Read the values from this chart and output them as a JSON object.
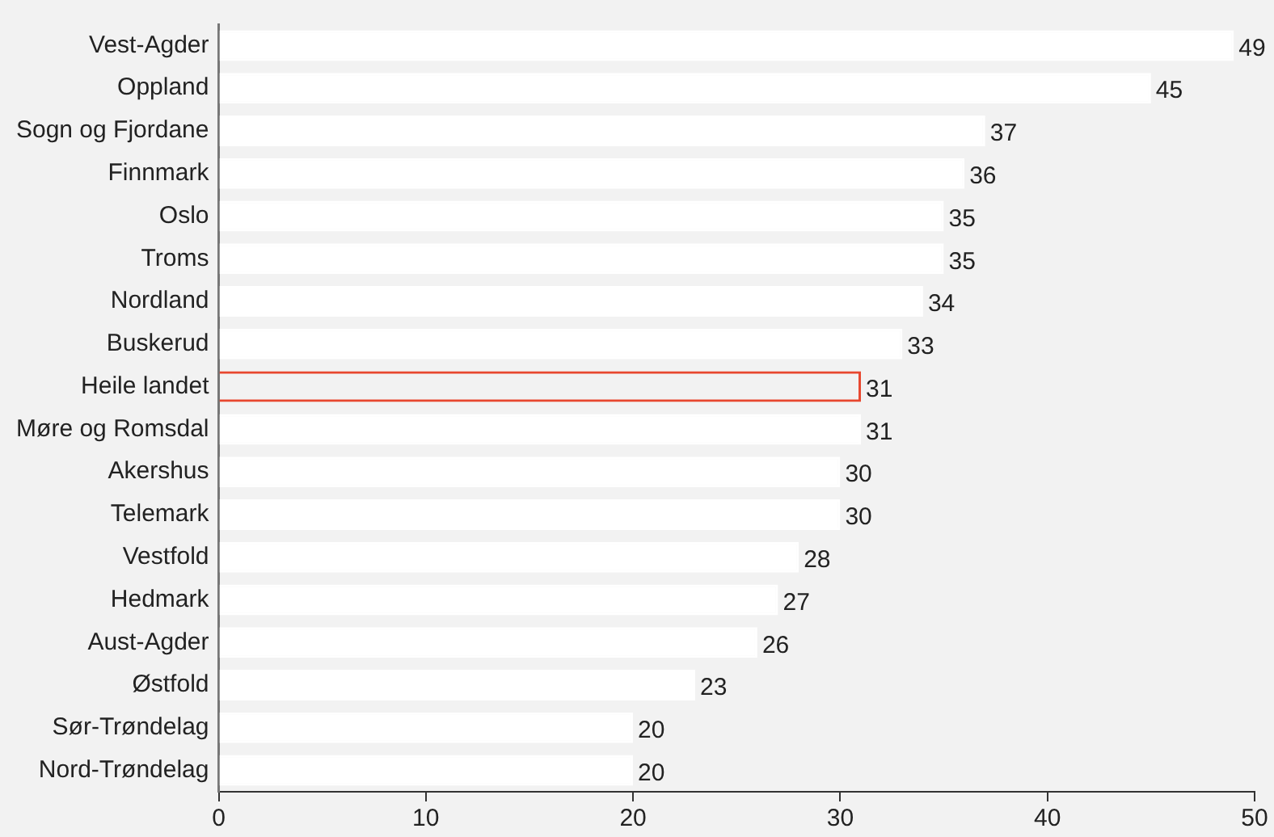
{
  "chart_data": {
    "type": "bar",
    "orientation": "horizontal",
    "categories": [
      "Vest-Agder",
      "Oppland",
      "Sogn og Fjordane",
      "Finnmark",
      "Oslo",
      "Troms",
      "Nordland",
      "Buskerud",
      "Heile landet",
      "Møre og Romsdal",
      "Akershus",
      "Telemark",
      "Vestfold",
      "Hedmark",
      "Aust-Agder",
      "Østfold",
      "Sør-Trøndelag",
      "Nord-Trøndelag"
    ],
    "values": [
      49,
      45,
      37,
      36,
      35,
      35,
      34,
      33,
      31,
      31,
      30,
      30,
      28,
      27,
      26,
      23,
      20,
      20
    ],
    "colors": [
      "#ffffff",
      "#ffffff",
      "#ffffff",
      "#ffffff",
      "#ffffff",
      "#ffffff",
      "#ffffff",
      "#ffffff",
      "#e8472f",
      "#ffffff",
      "#ffffff",
      "#ffffff",
      "#ffffff",
      "#ffffff",
      "#ffffff",
      "#ffffff",
      "#ffffff",
      "#ffffff"
    ],
    "xlim": [
      0,
      50
    ],
    "xticks": [
      0,
      10,
      20,
      30,
      40,
      50
    ],
    "grid": false,
    "data_labels": true
  }
}
